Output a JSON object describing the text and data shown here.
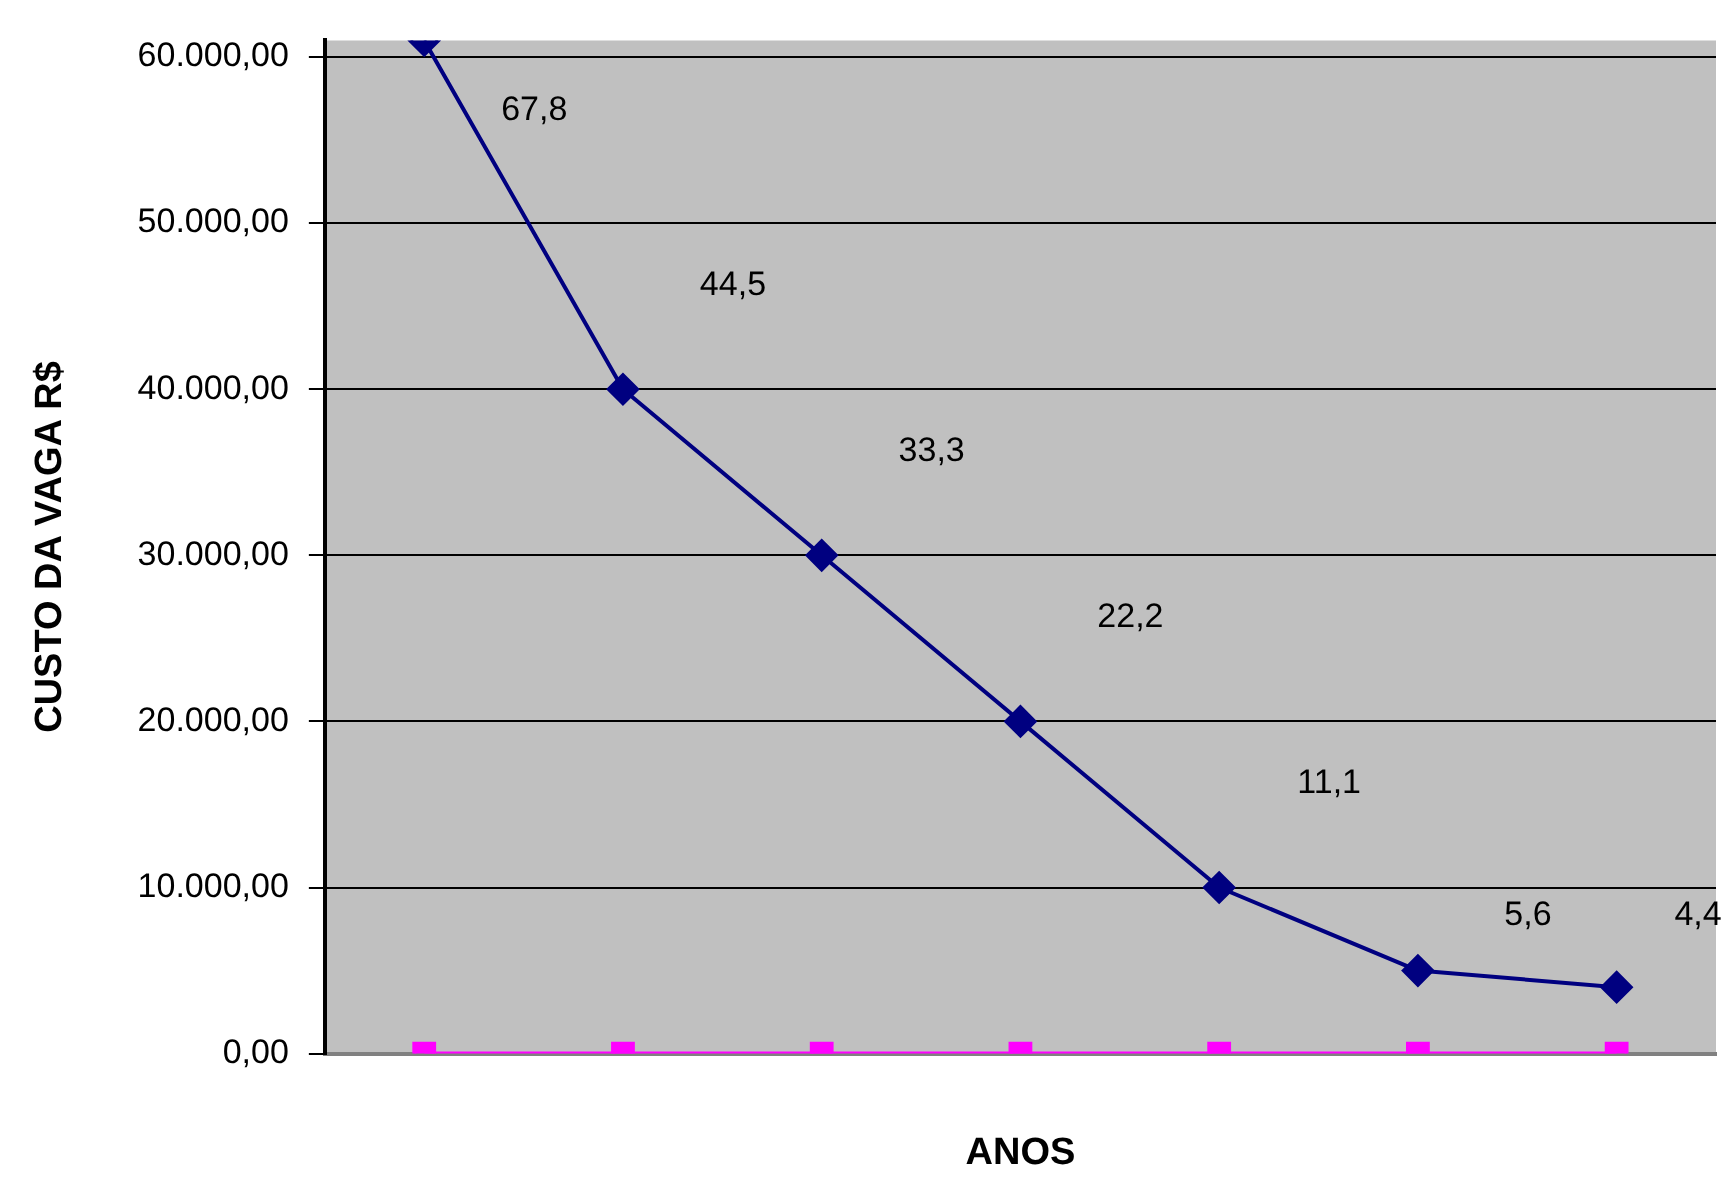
{
  "chart_data": {
    "type": "line",
    "xlabel": "ANOS",
    "ylabel": "CUSTO DA VAGA R$",
    "categories": [
      null,
      null,
      null,
      null,
      null,
      null,
      null
    ],
    "series": [
      {
        "color": "#000080",
        "marker": "diamond",
        "values": [
          61000,
          40000,
          30000,
          20000,
          10000,
          5000,
          4000
        ]
      },
      {
        "color": "#ff00ff",
        "marker": "square",
        "values": [
          0,
          0,
          0,
          0,
          0,
          0,
          0
        ]
      }
    ],
    "ylim": [
      0,
      61000
    ],
    "yticks": [
      {
        "value": 0,
        "label": "0,00"
      },
      {
        "value": 10000,
        "label": "10.000,00"
      },
      {
        "value": 20000,
        "label": "20.000,00"
      },
      {
        "value": 30000,
        "label": "30.000,00"
      },
      {
        "value": 40000,
        "label": "40.000,00"
      },
      {
        "value": 50000,
        "label": "50.000,00"
      },
      {
        "value": 60000,
        "label": "60.000,00"
      }
    ],
    "annotations": [
      "67,8",
      "44,5",
      "33,3",
      "22,2",
      "11,1",
      "5,6",
      "4,4"
    ],
    "grid": "y",
    "legend": false
  }
}
